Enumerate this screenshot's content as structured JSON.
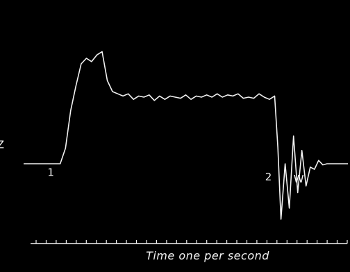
{
  "chart_data": {
    "type": "line",
    "xlabel": "Time one per second",
    "x_range": [
      0,
      31
    ],
    "y_range": [
      0,
      100
    ],
    "tick_count": 32,
    "colors": {
      "background": "#000000",
      "trace": "#f2f2f2"
    },
    "grid": false,
    "annotations": [
      {
        "text": "Z",
        "x": -2.2,
        "y": 14
      },
      {
        "text": "1",
        "x": 2.6,
        "y": -11
      },
      {
        "text": "2",
        "x": 23.4,
        "y": -15
      },
      {
        "text": "W",
        "x": 26.3,
        "y": -17
      }
    ],
    "series": [
      {
        "x": [
          0,
          0.5,
          1,
          1.5,
          2,
          2.5,
          3,
          3.5,
          4,
          4.5,
          5,
          5.5,
          6,
          6.5,
          7,
          7.5,
          8,
          8.5,
          9,
          9.5,
          10,
          10.5,
          11,
          11.5,
          12,
          12.5,
          13,
          13.5,
          14,
          14.5,
          15,
          15.5,
          16,
          16.5,
          17,
          17.5,
          18,
          18.5,
          19,
          19.5,
          20,
          20.5,
          21,
          21.5,
          22,
          22.5,
          23,
          23.5,
          24,
          24.3,
          24.6,
          25,
          25.4,
          25.8,
          26.2,
          26.6,
          27,
          27.4,
          27.8,
          28.2,
          28.6,
          29,
          30,
          31
        ],
        "y": [
          0,
          0,
          0,
          0,
          0,
          0,
          0,
          0,
          14,
          48,
          70,
          90,
          95,
          92,
          98,
          101,
          75,
          65,
          63,
          61,
          63,
          58,
          61,
          60,
          62,
          57,
          61,
          58,
          61,
          60,
          59,
          62,
          58,
          61,
          60,
          62,
          60,
          63,
          60,
          62,
          61,
          63,
          59,
          60,
          59,
          63,
          60,
          58,
          61,
          15,
          -50,
          0,
          -40,
          25,
          -26,
          12,
          -20,
          -3,
          -5,
          3,
          -1,
          0,
          0,
          0
        ]
      }
    ]
  }
}
